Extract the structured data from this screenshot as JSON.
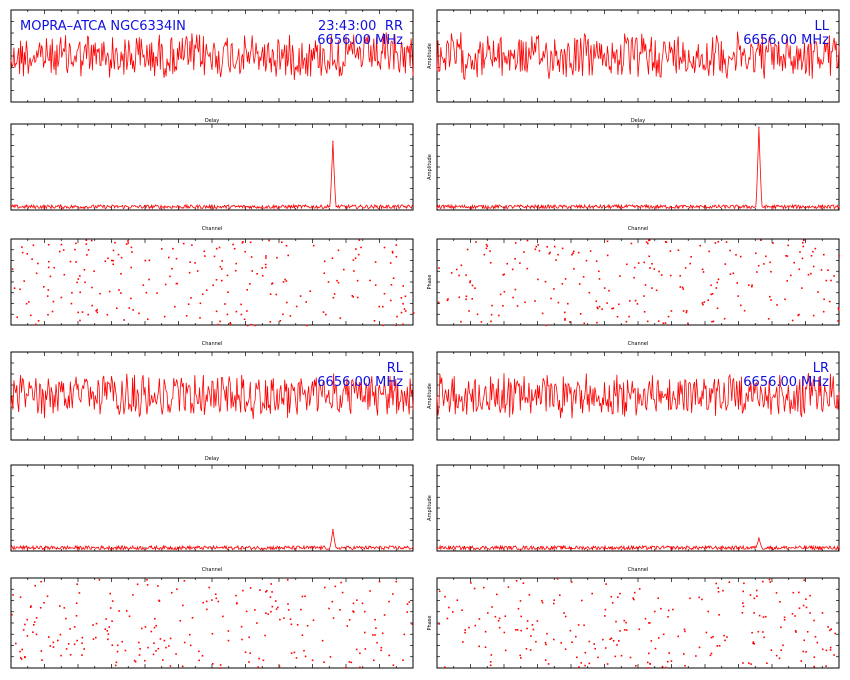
{
  "header": {
    "source": "MOPRA–ATCA NGC6334IN",
    "time": "23:43:00"
  },
  "colors": {
    "trace": "#ff0000",
    "label": "#1010e0",
    "axis": "#000000"
  },
  "chart_data": [
    {
      "id": "rr-delay",
      "type": "line",
      "pol": "RR",
      "freq": "6656.00 MHz",
      "xlabel": "Delay",
      "ylabel": "Amplitude",
      "xlim": [
        -256,
        256
      ],
      "ylim": [
        0,
        5
      ],
      "tick_labels": [],
      "note": "noise-like trace"
    },
    {
      "id": "ll-delay",
      "type": "line",
      "pol": "LL",
      "freq": "6656.00 MHz",
      "xlabel": "Delay",
      "ylabel": "Amplitude",
      "xlim": [
        -256,
        256
      ],
      "ylim": [
        0,
        5
      ],
      "tick_labels": [],
      "note": "noise-like trace"
    },
    {
      "id": "rr-amp",
      "type": "line",
      "xlabel": "Channel",
      "ylabel": "Amplitude",
      "xlim": [
        0,
        512
      ],
      "ylim": [
        0,
        8
      ],
      "baseline": 0.3,
      "peak": {
        "channel": 410,
        "value": 6.4
      }
    },
    {
      "id": "ll-amp",
      "type": "line",
      "xlabel": "Channel",
      "ylabel": "Amplitude",
      "xlim": [
        0,
        512
      ],
      "ylim": [
        0,
        8
      ],
      "baseline": 0.3,
      "peak": {
        "channel": 410,
        "value": 7.7
      }
    },
    {
      "id": "rr-phase",
      "type": "scatter",
      "xlabel": "Channel",
      "ylabel": "Phase",
      "xlim": [
        0,
        512
      ],
      "ylim": [
        -180,
        180
      ],
      "note": "random phases"
    },
    {
      "id": "ll-phase",
      "type": "scatter",
      "xlabel": "Channel",
      "ylabel": "Phase",
      "xlim": [
        0,
        512
      ],
      "ylim": [
        -180,
        180
      ],
      "note": "random phases"
    },
    {
      "id": "rl-delay",
      "type": "line",
      "pol": "RL",
      "freq": "6656.00 MHz",
      "xlabel": "Delay",
      "ylabel": "Amplitude",
      "xlim": [
        -256,
        256
      ],
      "ylim": [
        0,
        5
      ],
      "note": "noise-like trace"
    },
    {
      "id": "lr-delay",
      "type": "line",
      "pol": "LR",
      "freq": "6656.00 MHz",
      "xlabel": "Delay",
      "ylabel": "Amplitude",
      "xlim": [
        -256,
        256
      ],
      "ylim": [
        0,
        5
      ],
      "note": "noise-like trace"
    },
    {
      "id": "rl-amp",
      "type": "line",
      "xlabel": "Channel",
      "ylabel": "Amplitude",
      "xlim": [
        0,
        512
      ],
      "ylim": [
        0,
        8
      ],
      "baseline": 0.3,
      "peak": {
        "channel": 410,
        "value": 2.0
      }
    },
    {
      "id": "lr-amp",
      "type": "line",
      "xlabel": "Channel",
      "ylabel": "Amplitude",
      "xlim": [
        0,
        512
      ],
      "ylim": [
        0,
        8
      ],
      "baseline": 0.3,
      "peak": {
        "channel": 410,
        "value": 1.2
      }
    },
    {
      "id": "rl-phase",
      "type": "scatter",
      "xlabel": "Channel",
      "ylabel": "Phase",
      "xlim": [
        0,
        512
      ],
      "ylim": [
        -180,
        180
      ],
      "note": "random phases"
    },
    {
      "id": "lr-phase",
      "type": "scatter",
      "xlabel": "Channel",
      "ylabel": "Phase",
      "xlim": [
        0,
        512
      ],
      "ylim": [
        -180,
        180
      ],
      "note": "random phases"
    }
  ]
}
